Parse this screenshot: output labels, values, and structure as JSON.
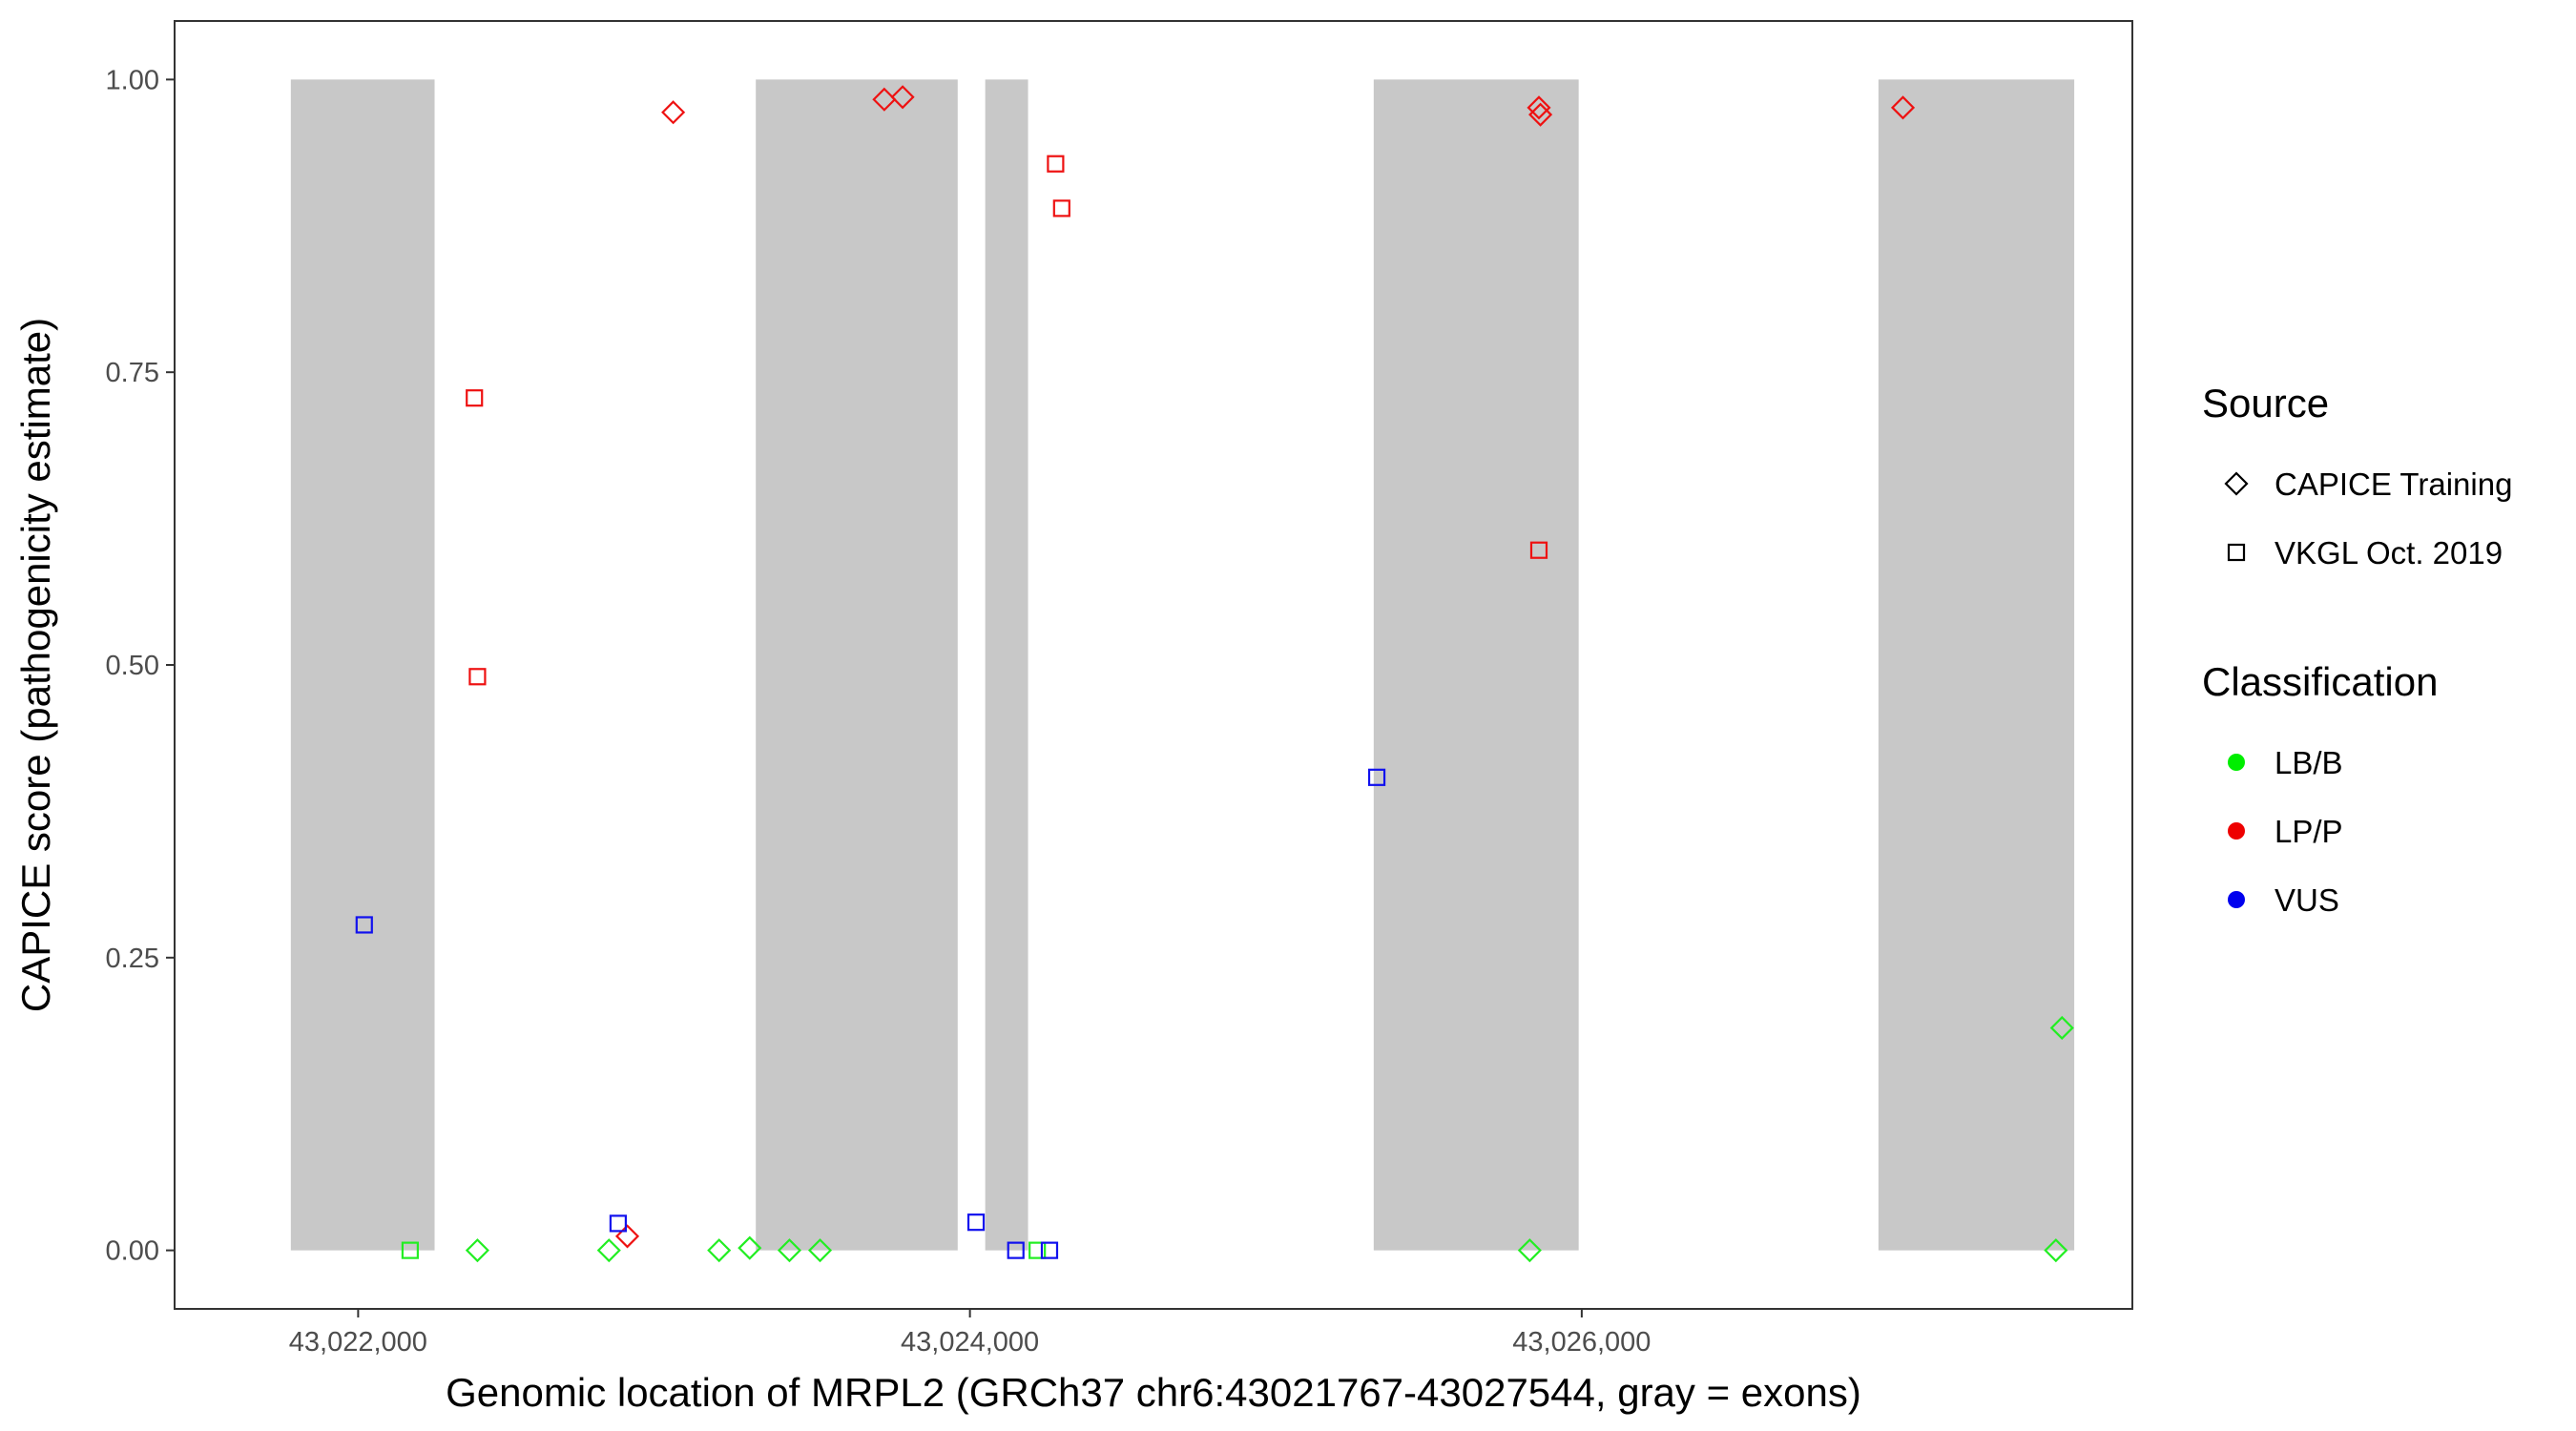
{
  "chart_data": {
    "type": "scatter",
    "title": "",
    "xlabel": "Genomic location of MRPL2 (GRCh37 chr6:43021767-43027544, gray = exons)",
    "ylabel": "CAPICE score (pathogenicity estimate)",
    "xlim": [
      43021400,
      43027800
    ],
    "ylim": [
      -0.05,
      1.05
    ],
    "x_ticks": [
      43022000,
      43024000,
      43026000
    ],
    "x_tick_labels": [
      "43,022,000",
      "43,024,000",
      "43,026,000"
    ],
    "y_ticks": [
      0.0,
      0.25,
      0.5,
      0.75,
      1.0
    ],
    "y_tick_labels": [
      "0.00",
      "0.25",
      "0.50",
      "0.75",
      "1.00"
    ],
    "grid": false,
    "exon_shading": [
      {
        "start": 43021780,
        "end": 43022250
      },
      {
        "start": 43023300,
        "end": 43023960
      },
      {
        "start": 43024050,
        "end": 43024190
      },
      {
        "start": 43025320,
        "end": 43025990
      },
      {
        "start": 43026970,
        "end": 43027610
      }
    ],
    "exon_shading_range": [
      0,
      1
    ],
    "exon_color": "#c8c8c8",
    "legend_placement": "right",
    "legends": [
      {
        "title": "Source",
        "entries": [
          {
            "label": "CAPICE Training",
            "shape": "diamond"
          },
          {
            "label": "VKGL Oct. 2019",
            "shape": "square"
          }
        ]
      },
      {
        "title": "Classification",
        "entries": [
          {
            "label": "LB/B",
            "color": "#00ee00"
          },
          {
            "label": "LP/P",
            "color": "#ee0000"
          },
          {
            "label": "VUS",
            "color": "#0000ee"
          }
        ]
      }
    ],
    "classification_colors": {
      "LB/B": "#22ee22",
      "LP/P": "#ee1111",
      "VUS": "#1111ee"
    },
    "points": [
      {
        "x": 43022170,
        "y": 0.0,
        "source": "VKGL Oct. 2019",
        "class": "LB/B"
      },
      {
        "x": 43022390,
        "y": 0.0,
        "source": "CAPICE Training",
        "class": "LB/B"
      },
      {
        "x": 43022820,
        "y": 0.0,
        "source": "CAPICE Training",
        "class": "LB/B"
      },
      {
        "x": 43023180,
        "y": 0.0,
        "source": "CAPICE Training",
        "class": "LB/B"
      },
      {
        "x": 43023280,
        "y": 0.002,
        "source": "CAPICE Training",
        "class": "LB/B"
      },
      {
        "x": 43023410,
        "y": 0.0,
        "source": "CAPICE Training",
        "class": "LB/B"
      },
      {
        "x": 43023510,
        "y": 0.0,
        "source": "CAPICE Training",
        "class": "LB/B"
      },
      {
        "x": 43024220,
        "y": 0.0,
        "source": "VKGL Oct. 2019",
        "class": "LB/B"
      },
      {
        "x": 43025830,
        "y": 0.0,
        "source": "CAPICE Training",
        "class": "LB/B"
      },
      {
        "x": 43027550,
        "y": 0.0,
        "source": "CAPICE Training",
        "class": "LB/B"
      },
      {
        "x": 43027570,
        "y": 0.19,
        "source": "CAPICE Training",
        "class": "LB/B"
      },
      {
        "x": 43022380,
        "y": 0.728,
        "source": "VKGL Oct. 2019",
        "class": "LP/P"
      },
      {
        "x": 43022390,
        "y": 0.49,
        "source": "VKGL Oct. 2019",
        "class": "LP/P"
      },
      {
        "x": 43022880,
        "y": 0.012,
        "source": "CAPICE Training",
        "class": "LP/P"
      },
      {
        "x": 43023030,
        "y": 0.972,
        "source": "CAPICE Training",
        "class": "LP/P"
      },
      {
        "x": 43023720,
        "y": 0.983,
        "source": "CAPICE Training",
        "class": "LP/P"
      },
      {
        "x": 43023780,
        "y": 0.985,
        "source": "CAPICE Training",
        "class": "LP/P"
      },
      {
        "x": 43024280,
        "y": 0.928,
        "source": "VKGL Oct. 2019",
        "class": "LP/P"
      },
      {
        "x": 43024300,
        "y": 0.89,
        "source": "VKGL Oct. 2019",
        "class": "LP/P"
      },
      {
        "x": 43025860,
        "y": 0.976,
        "source": "CAPICE Training",
        "class": "LP/P"
      },
      {
        "x": 43025865,
        "y": 0.97,
        "source": "CAPICE Training",
        "class": "LP/P"
      },
      {
        "x": 43025860,
        "y": 0.598,
        "source": "VKGL Oct. 2019",
        "class": "LP/P"
      },
      {
        "x": 43027050,
        "y": 0.976,
        "source": "CAPICE Training",
        "class": "LP/P"
      },
      {
        "x": 43022020,
        "y": 0.278,
        "source": "VKGL Oct. 2019",
        "class": "VUS"
      },
      {
        "x": 43022850,
        "y": 0.023,
        "source": "VKGL Oct. 2019",
        "class": "VUS"
      },
      {
        "x": 43024020,
        "y": 0.024,
        "source": "VKGL Oct. 2019",
        "class": "VUS"
      },
      {
        "x": 43024150,
        "y": 0.0,
        "source": "VKGL Oct. 2019",
        "class": "VUS"
      },
      {
        "x": 43024260,
        "y": 0.0,
        "source": "VKGL Oct. 2019",
        "class": "VUS"
      },
      {
        "x": 43025330,
        "y": 0.404,
        "source": "VKGL Oct. 2019",
        "class": "VUS"
      }
    ]
  }
}
